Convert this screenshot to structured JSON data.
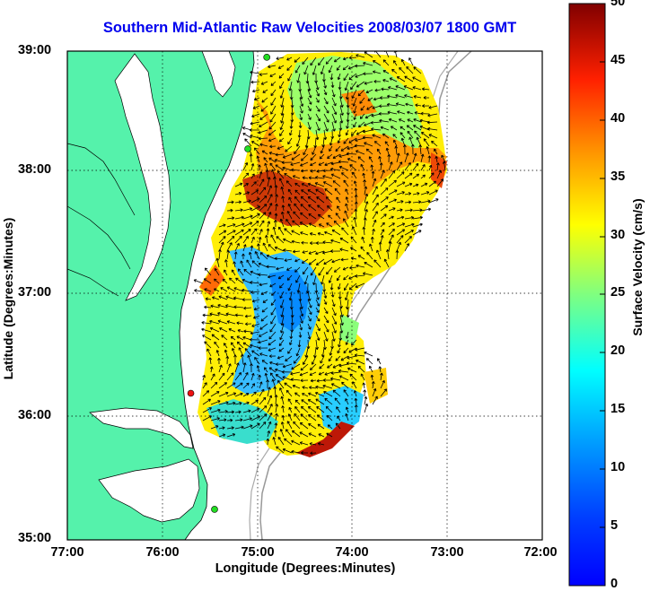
{
  "title": "Southern Mid-Atlantic Raw Velocities 2008/03/07 1800 GMT",
  "axes": {
    "x_label": "Longitude (Degrees:Minutes)",
    "y_label": "Latitude (Degrees:Minutes)",
    "x_ticks": [
      "77:00",
      "76:00",
      "75:00",
      "74:00",
      "73:00",
      "72:00"
    ],
    "y_ticks": [
      "39:00",
      "38:00",
      "37:00",
      "36:00",
      "35:00"
    ]
  },
  "colorbar": {
    "label": "Surface Velocity (cm/s)",
    "ticks": [
      "0",
      "5",
      "10",
      "15",
      "20",
      "25",
      "30",
      "35",
      "40",
      "45",
      "50"
    ],
    "min": 0,
    "max": 50
  },
  "colors": {
    "land": "#55f2ab",
    "coast_line": "#000000",
    "bathymetry": "#999999",
    "title": "#0000ee",
    "station_green": "#22dd22",
    "station_red": "#ee1111"
  },
  "chart_data": {
    "type": "heatmap",
    "x_range": [
      -77,
      -72
    ],
    "y_range": [
      35,
      39
    ],
    "grid": true,
    "stations": [
      {
        "lon": -74.9,
        "lat": 38.95,
        "status": "green"
      },
      {
        "lon": -75.1,
        "lat": 38.2,
        "status": "green"
      },
      {
        "lon": -75.7,
        "lat": 36.2,
        "status": "red"
      },
      {
        "lon": -75.45,
        "lat": 35.25,
        "status": "green"
      }
    ]
  }
}
